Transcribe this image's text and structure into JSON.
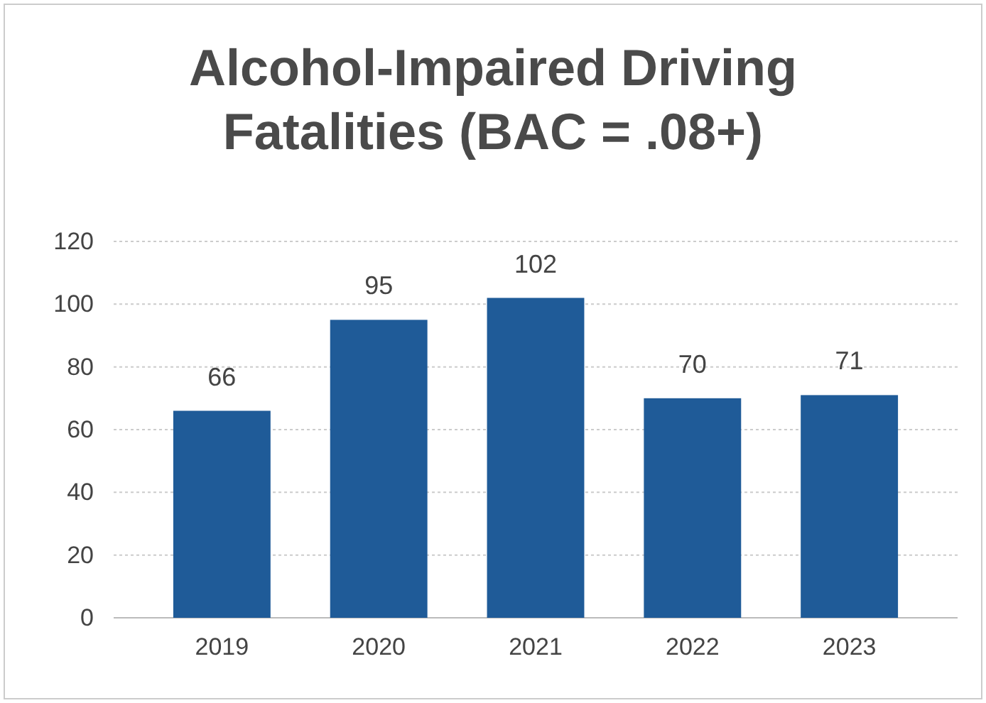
{
  "chart_data": {
    "type": "bar",
    "title": "Alcohol-Impaired Driving Fatalities (BAC = .08+)",
    "categories": [
      "2019",
      "2020",
      "2021",
      "2022",
      "2023"
    ],
    "values": [
      66,
      95,
      102,
      70,
      71
    ],
    "color": "#1f5b98",
    "ylim": [
      0,
      120
    ],
    "yticks": [
      0,
      20,
      40,
      60,
      80,
      100,
      120
    ],
    "grid": "y",
    "data_labels": true
  }
}
